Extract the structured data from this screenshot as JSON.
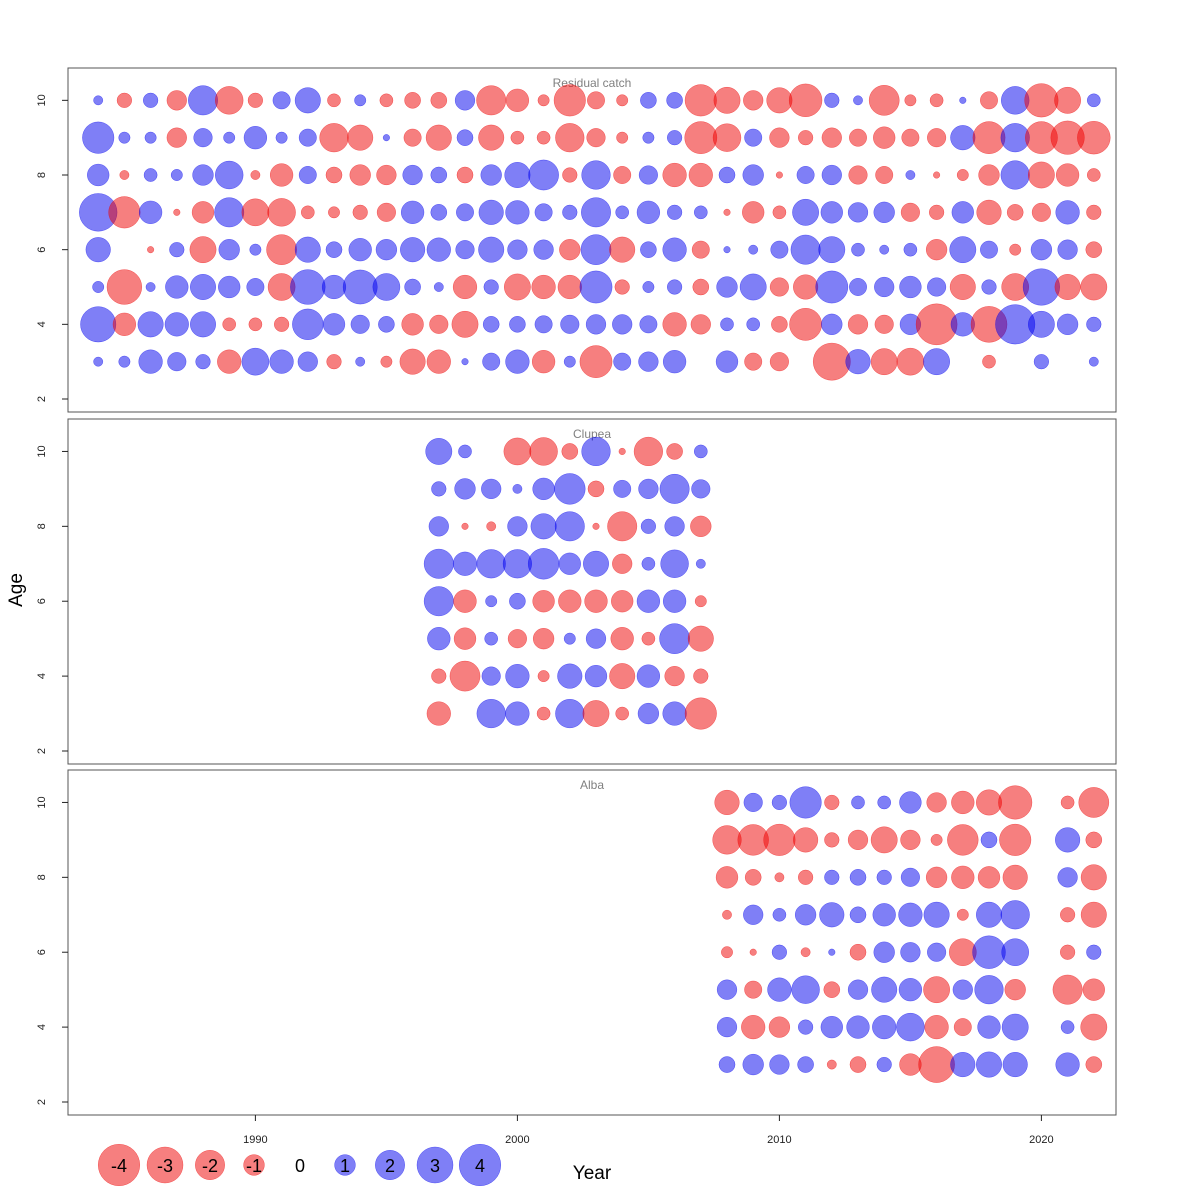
{
  "chart_data": {
    "type": "bubble",
    "xlabel": "Year",
    "ylabel": "Age",
    "xlim": [
      1983,
      2023
    ],
    "ylim": [
      2,
      11
    ],
    "x_ticks": [
      "1990",
      "2000",
      "2010",
      "2020"
    ],
    "y_ticks": [
      "2",
      "4",
      "6",
      "8",
      "10"
    ],
    "colors": {
      "positive": "#0000ee",
      "negative": "#ee0000"
    },
    "legend": {
      "position": "bottom-left",
      "entries": [
        {
          "label": "-4",
          "value": -4
        },
        {
          "label": "-3",
          "value": -3
        },
        {
          "label": "-2",
          "value": -2
        },
        {
          "label": "-1",
          "value": -1
        },
        {
          "label": "0",
          "value": 0
        },
        {
          "label": "1",
          "value": 1
        },
        {
          "label": "2",
          "value": 2
        },
        {
          "label": "3",
          "value": 3
        },
        {
          "label": "4",
          "value": 4
        }
      ]
    },
    "panels": [
      {
        "title": "Residual catch",
        "years": [
          1984,
          1985,
          1986,
          1987,
          1988,
          1989,
          1990,
          1991,
          1992,
          1993,
          1994,
          1995,
          1996,
          1997,
          1998,
          1999,
          2000,
          2001,
          2002,
          2003,
          2004,
          2005,
          2006,
          2007,
          2008,
          2009,
          2010,
          2011,
          2012,
          2013,
          2014,
          2015,
          2016,
          2017,
          2018,
          2019,
          2020,
          2021,
          2022
        ],
        "ages": [
          3,
          4,
          5,
          6,
          7,
          8,
          9,
          10
        ],
        "residuals": {
          "3": [
            0.2,
            0.3,
            1.3,
            0.8,
            0.5,
            -1.3,
            1.7,
            1.3,
            0.9,
            -0.5,
            0.2,
            -0.3,
            -1.5,
            -1.3,
            0.1,
            0.7,
            1.3,
            -1.2,
            0.3,
            -2.4,
            0.7,
            0.9,
            1.2,
            0,
            1.1,
            -0.7,
            -0.8,
            null,
            -3.2,
            1.4,
            -1.6,
            -1.7,
            1.6,
            null,
            -0.4,
            null,
            0.5,
            null,
            0.2
          ],
          "4": [
            2.9,
            -1.2,
            1.5,
            1.3,
            1.5,
            -0.4,
            -0.4,
            -0.5,
            2.2,
            1.1,
            0.8,
            0.6,
            -1.1,
            -0.8,
            -1.6,
            0.6,
            0.6,
            0.7,
            0.8,
            0.9,
            0.9,
            0.7,
            -1.3,
            -0.9,
            0.4,
            0.4,
            -0.6,
            -2.4,
            1,
            -0.9,
            -0.8,
            1,
            -3.9,
            1.3,
            -3,
            3.6,
            1.6,
            1,
            0.5
          ],
          "5": [
            0.3,
            -2.8,
            0.2,
            1.2,
            1.5,
            1.1,
            0.7,
            -1.7,
            2.8,
            1.3,
            2.7,
            1.7,
            0.6,
            0.2,
            -1.3,
            0.5,
            -1.6,
            -1.3,
            -1.3,
            2.4,
            -0.5,
            0.3,
            0.5,
            -0.6,
            1,
            1.6,
            -0.8,
            -1.4,
            2.4,
            0.7,
            0.9,
            1.1,
            0.8,
            -1.5,
            0.5,
            -1.7,
            3.1,
            -1.5,
            -1.6
          ],
          "6": [
            1.4,
            0,
            -0.1,
            0.5,
            -1.6,
            1,
            0.3,
            -2.1,
            1.5,
            0.6,
            1.2,
            1,
            1.4,
            1.3,
            0.8,
            1.5,
            0.9,
            0.9,
            -1,
            2.1,
            -1.5,
            0.6,
            1.3,
            -0.7,
            0.1,
            0.2,
            0.7,
            2,
            1.6,
            0.4,
            0.2,
            0.4,
            -1,
            1.6,
            0.7,
            -0.3,
            1,
            0.9,
            -0.6
          ],
          "7": [
            3.3,
            -2.3,
            1.2,
            -0.1,
            -1.1,
            2,
            -1.7,
            -1.8,
            -0.4,
            -0.3,
            -0.5,
            -0.8,
            1.2,
            0.6,
            0.7,
            1.4,
            1.3,
            0.7,
            0.5,
            2,
            0.4,
            1.2,
            0.5,
            0.4,
            -0.1,
            -1.1,
            -0.4,
            1.6,
            1.1,
            0.9,
            1,
            -0.8,
            -0.5,
            1.1,
            -1.4,
            -0.6,
            -0.8,
            1.3,
            -0.5
          ],
          "8": [
            1.1,
            -0.2,
            0.4,
            0.3,
            1,
            1.8,
            -0.2,
            -1.2,
            0.7,
            -0.6,
            -1,
            -0.9,
            0.9,
            0.6,
            -0.6,
            1,
            1.5,
            2.1,
            -0.5,
            1.9,
            -0.7,
            0.8,
            -1.3,
            -1.3,
            0.6,
            1,
            -0.1,
            0.7,
            0.9,
            -0.8,
            -0.7,
            0.2,
            -0.1,
            -0.3,
            -1,
            1.9,
            -1.6,
            -1.2,
            -0.4
          ],
          "9": [
            2.3,
            0.3,
            0.3,
            -0.9,
            0.8,
            0.3,
            1.2,
            0.3,
            0.7,
            -1.9,
            -1.5,
            0.1,
            -0.7,
            -1.5,
            0.6,
            -1.5,
            -0.4,
            -0.4,
            -1.9,
            -0.8,
            -0.3,
            0.3,
            0.5,
            -2.4,
            -1.8,
            0.7,
            -0.9,
            -0.5,
            -0.9,
            -0.7,
            -1.1,
            -0.7,
            -0.8,
            1.4,
            -2.4,
            1.9,
            -2.4,
            -2.6,
            -2.5
          ],
          "10": [
            0.2,
            -0.5,
            0.5,
            -0.9,
            2,
            -1.8,
            -0.5,
            0.7,
            1.5,
            -0.4,
            0.3,
            -0.4,
            -0.6,
            -0.6,
            0.9,
            -2,
            -1.2,
            -0.3,
            -2.3,
            -0.7,
            -0.3,
            0.6,
            0.6,
            -2.3,
            -1.6,
            -0.9,
            -1.5,
            -2.5,
            0.5,
            0.2,
            -2.1,
            -0.3,
            -0.4,
            0.1,
            -0.7,
            1.8,
            -2.6,
            -1.6,
            0.4
          ]
        }
      },
      {
        "title": "Clupea",
        "years": [
          1997,
          1998,
          1999,
          2000,
          2001,
          2002,
          2003,
          2004,
          2005,
          2006,
          2007
        ],
        "ages": [
          3,
          4,
          5,
          6,
          7,
          8,
          9,
          10
        ],
        "residuals": {
          "3": [
            -1.3,
            0,
            1.9,
            1.3,
            -0.4,
            1.9,
            -1.6,
            -0.4,
            1,
            1.3,
            -2.3
          ],
          "4": [
            -0.5,
            -2.1,
            0.8,
            1.3,
            -0.3,
            1.4,
            1.1,
            -1.5,
            1.2,
            -0.9,
            -0.5
          ],
          "5": [
            1.2,
            -1.1,
            0.4,
            -0.8,
            -1,
            0.3,
            0.9,
            -1.2,
            -0.4,
            2.1,
            -1.5
          ],
          "6": [
            2,
            -1.2,
            0.3,
            0.6,
            -1.1,
            -1.2,
            -1.2,
            -1.1,
            1.2,
            1.2,
            -0.3
          ],
          "7": [
            2,
            1.3,
            1.9,
            1.9,
            2.2,
            1.1,
            1.5,
            -0.9,
            0.4,
            1.8,
            0.2
          ],
          "8": [
            0.9,
            -0.1,
            -0.2,
            0.9,
            1.5,
            2,
            -0.1,
            -2,
            0.5,
            0.9,
            -1
          ],
          "9": [
            0.5,
            1,
            0.9,
            0.2,
            1.1,
            2.2,
            -0.6,
            0.7,
            0.9,
            2,
            0.8
          ],
          "10": [
            1.6,
            0.4,
            0,
            -1.7,
            -1.8,
            -0.6,
            1.9,
            -0.1,
            -1.9,
            -0.6,
            0.4
          ]
        }
      },
      {
        "title": "Alba",
        "years": [
          2008,
          2009,
          2010,
          2011,
          2012,
          2013,
          2014,
          2015,
          2016,
          2017,
          2018,
          2019,
          2021,
          2022
        ],
        "ages": [
          3,
          4,
          5,
          6,
          7,
          8,
          9,
          10
        ],
        "residuals": {
          "3": [
            0.6,
            1,
            0.9,
            0.6,
            -0.2,
            -0.6,
            0.5,
            -1.1,
            -3,
            1.4,
            1.5,
            1.4,
            1.3,
            -0.6
          ],
          "4": [
            0.9,
            -1.3,
            -1,
            0.5,
            1.1,
            1.2,
            1.3,
            1.8,
            -1.3,
            -0.7,
            1.2,
            1.6,
            0.4,
            -1.6
          ],
          "5": [
            0.9,
            -0.7,
            1.3,
            1.8,
            -0.6,
            0.9,
            1.5,
            1.2,
            -1.6,
            0.9,
            1.9,
            -1,
            -2,
            -1.1
          ],
          "6": [
            -0.3,
            -0.1,
            0.5,
            -0.2,
            0.1,
            -0.6,
            1,
            0.9,
            0.8,
            -1.7,
            2.5,
            1.7,
            -0.5,
            0.5
          ],
          "7": [
            -0.2,
            0.9,
            0.4,
            1,
            1.4,
            0.6,
            1.2,
            1.3,
            1.5,
            -0.3,
            1.5,
            1.9,
            -0.5,
            -1.5
          ],
          "8": [
            -1.1,
            -0.6,
            -0.2,
            -0.5,
            0.5,
            0.6,
            0.5,
            0.8,
            -1,
            -1.2,
            -1.1,
            -1.4,
            0.9,
            -1.5
          ],
          "9": [
            -1.9,
            -2.2,
            -2.3,
            -1.4,
            -0.5,
            -0.9,
            -1.6,
            -0.9,
            -0.3,
            -2.2,
            0.6,
            -2.3,
            1.4,
            -0.6
          ],
          "10": [
            -1.4,
            0.8,
            0.5,
            2.3,
            -0.5,
            0.4,
            0.4,
            1.1,
            -0.9,
            -1.2,
            -1.5,
            -2.6,
            -0.4,
            -2.1
          ]
        }
      }
    ]
  }
}
